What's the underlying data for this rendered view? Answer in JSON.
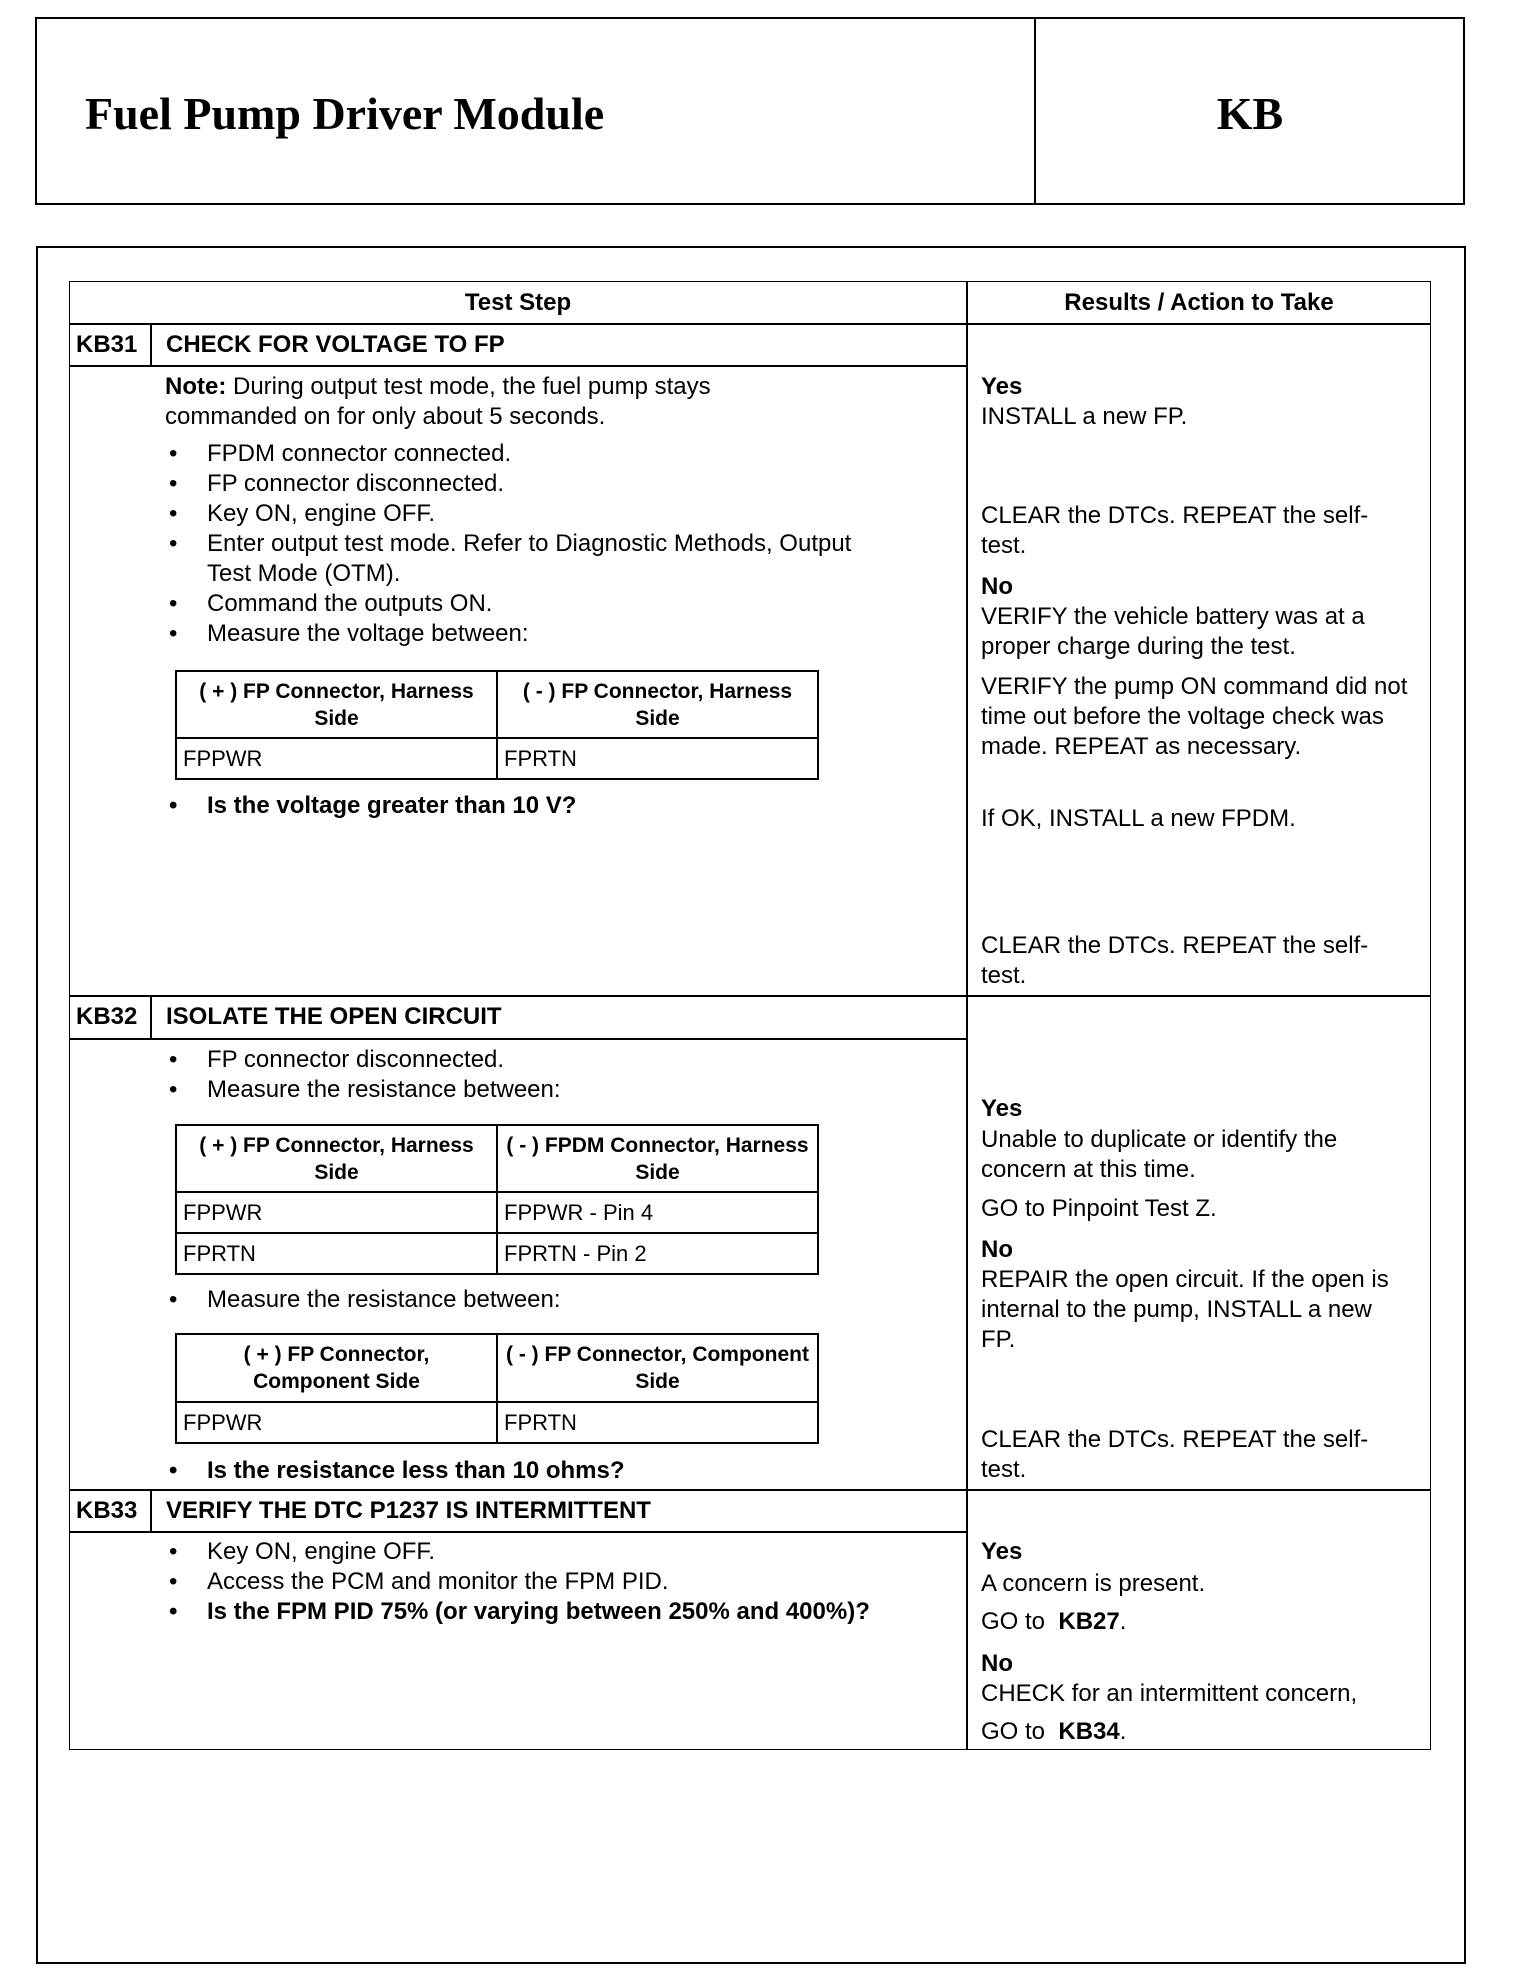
{
  "header": {
    "title": "Fuel Pump Driver Module",
    "code": "KB"
  },
  "table": {
    "headers": [
      "Test Step",
      "Results / Action to Take"
    ],
    "steps": [
      {
        "id": "KB31",
        "title": "CHECK FOR VOLTAGE TO FP",
        "note": {
          "label": "Note:",
          "text": "During output test mode, the fuel pump stays commanded on for only about 5 seconds."
        },
        "bullets": [
          "FPDM connector connected.",
          "FP connector disconnected.",
          "Key ON, engine OFF.",
          "Enter output test mode. Refer to Diagnostic Methods, Output Test  Mode (OTM).",
          "Command the outputs ON.",
          "Measure the voltage between:"
        ],
        "tables": [
          {
            "header": [
              "( + ) FP Connector, Harness Side",
              "( - ) FP Connector, Harness Side"
            ],
            "rows": [
              [
                "FPPWR",
                "FPRTN"
              ]
            ]
          }
        ],
        "question": "Is the voltage greater than 10 V?",
        "results": [
          "Yes",
          "INSTALL a new FP.",
          "CLEAR the DTCs. REPEAT the self-test.",
          "No",
          "VERIFY the vehicle battery was at a proper charge during the test.",
          "VERIFY the pump ON command did not time out before the voltage check was made. REPEAT as necessary.",
          "If OK, INSTALL a new FPDM.",
          "CLEAR the DTCs. REPEAT the self-test."
        ]
      },
      {
        "id": "KB32",
        "title": "ISOLATE THE OPEN CIRCUIT",
        "bullets": [
          "FP connector disconnected.",
          "Measure the resistance between:",
          "Measure the resistance between:"
        ],
        "tables": [
          {
            "header": [
              "( + ) FP Connector, Harness Side",
              "( - ) FPDM Connector, Harness Side"
            ],
            "rows": [
              [
                "FPPWR",
                "FPPWR - Pin 4"
              ],
              [
                "FPRTN",
                "FPRTN - Pin 2"
              ]
            ]
          },
          {
            "header": [
              "( + ) FP Connector, Component Side",
              "( - ) FP Connector, Component Side"
            ],
            "rows": [
              [
                "FPPWR",
                "FPRTN"
              ]
            ]
          }
        ],
        "question": "Is the resistance less than 10 ohms?",
        "results": [
          "Yes",
          "Unable to duplicate or identify the concern at this time.",
          "GO to Pinpoint Test Z.",
          "No",
          "REPAIR the open circuit. If the open is internal to the pump, INSTALL a new FP.",
          "CLEAR the DTCs. REPEAT the self-test."
        ]
      },
      {
        "id": "KB33",
        "title": "VERIFY THE DTC P1237 IS INTERMITTENT",
        "bullets": [
          "Key ON, engine OFF.",
          "Access the PCM and monitor the FPM PID."
        ],
        "question": "Is the FPM PID 75% (or varying between 250% and 400%)?",
        "results": [
          "Yes",
          "A concern is present.",
          {
            "go": "GO to",
            "ref": "KB27",
            "end": "."
          },
          "No",
          "CHECK for an intermittent concern,",
          {
            "go": "GO to",
            "ref": "KB34",
            "end": "."
          }
        ]
      }
    ]
  }
}
